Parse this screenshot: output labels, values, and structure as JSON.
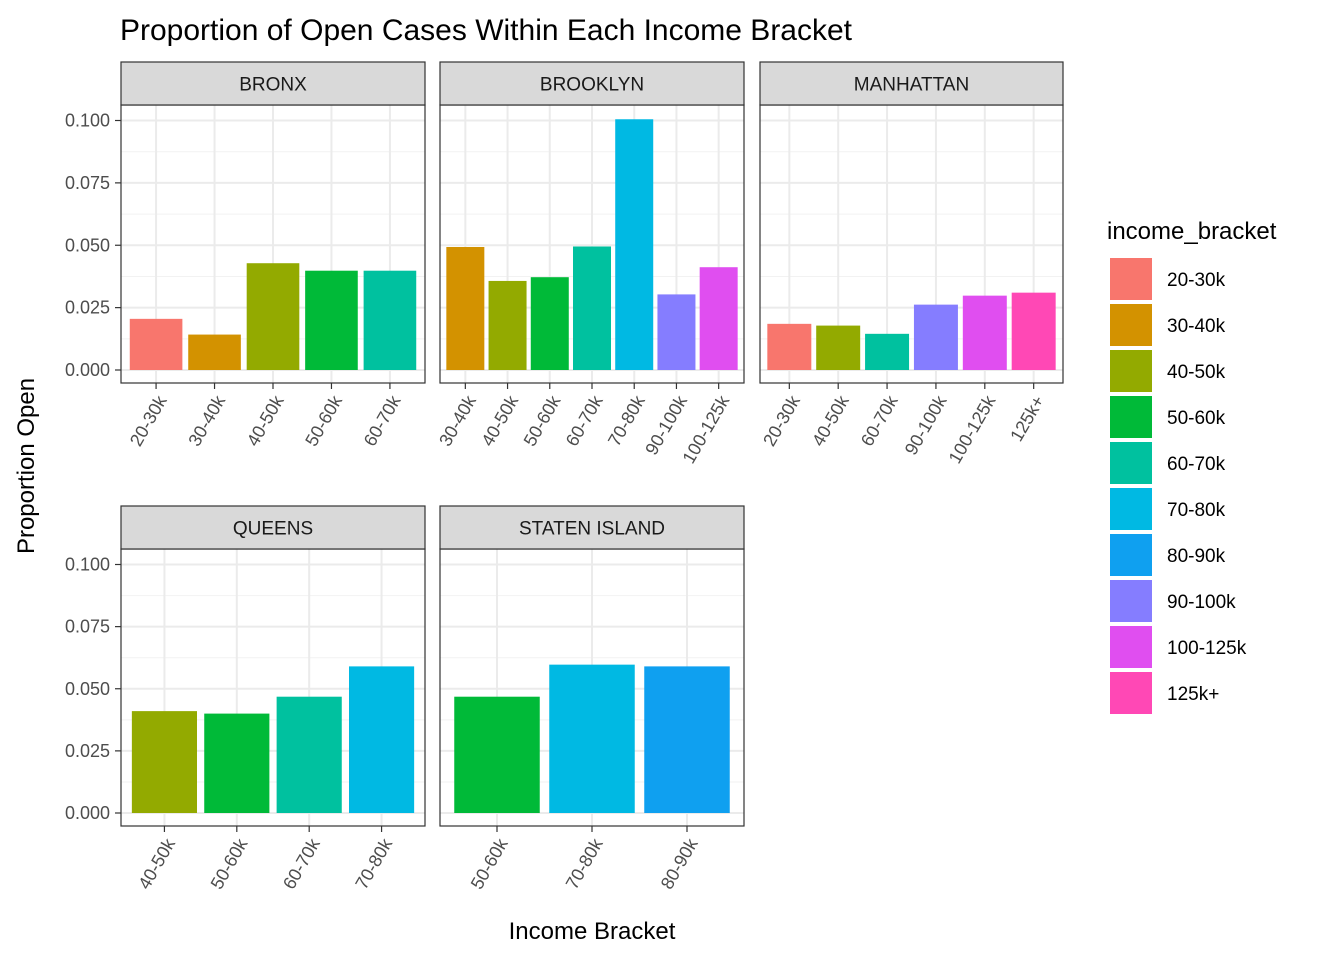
{
  "chart_data": {
    "type": "bar",
    "title": "Proportion of Open Cases Within Each Income Bracket",
    "xlabel": "Income Bracket",
    "ylabel": "Proportion Open",
    "ylim": [
      0,
      0.1
    ],
    "yticks": [
      "0.000",
      "0.025",
      "0.050",
      "0.075",
      "0.100"
    ],
    "ytick_values": [
      0,
      0.025,
      0.05,
      0.075,
      0.1
    ],
    "grid": true,
    "legend": {
      "title": "income_bracket",
      "placement": "right",
      "entries": [
        {
          "label": "20-30k",
          "color": "#F8766D"
        },
        {
          "label": "30-40k",
          "color": "#D39200"
        },
        {
          "label": "40-50k",
          "color": "#93AA00"
        },
        {
          "label": "50-60k",
          "color": "#00BA38"
        },
        {
          "label": "60-70k",
          "color": "#00C19F"
        },
        {
          "label": "70-80k",
          "color": "#00B9E3"
        },
        {
          "label": "80-90k",
          "color": "#0FA0F0"
        },
        {
          "label": "90-100k",
          "color": "#857DFF"
        },
        {
          "label": "100-125k",
          "color": "#E04EF0"
        },
        {
          "label": "125k+",
          "color": "#FF48B5"
        }
      ]
    },
    "panels": [
      {
        "name": "BRONX",
        "categories": [
          "20-30k",
          "30-40k",
          "40-50k",
          "50-60k",
          "60-70k"
        ],
        "values": [
          0.0205,
          0.0142,
          0.0428,
          0.0398,
          0.0398
        ]
      },
      {
        "name": "BROOKLYN",
        "categories": [
          "30-40k",
          "40-50k",
          "50-60k",
          "60-70k",
          "70-80k",
          "90-100k",
          "100-125k"
        ],
        "values": [
          0.0493,
          0.0357,
          0.0372,
          0.0495,
          0.1005,
          0.0303,
          0.0412
        ]
      },
      {
        "name": "MANHATTAN",
        "categories": [
          "20-30k",
          "40-50k",
          "60-70k",
          "90-100k",
          "100-125k",
          "125k+"
        ],
        "values": [
          0.0185,
          0.0178,
          0.0145,
          0.0262,
          0.0298,
          0.031
        ]
      },
      {
        "name": "QUEENS",
        "categories": [
          "40-50k",
          "50-60k",
          "60-70k",
          "70-80k"
        ],
        "values": [
          0.041,
          0.04,
          0.0468,
          0.059
        ]
      },
      {
        "name": "STATEN ISLAND",
        "categories": [
          "50-60k",
          "70-80k",
          "80-90k"
        ],
        "values": [
          0.0468,
          0.0597,
          0.059
        ]
      }
    ]
  }
}
